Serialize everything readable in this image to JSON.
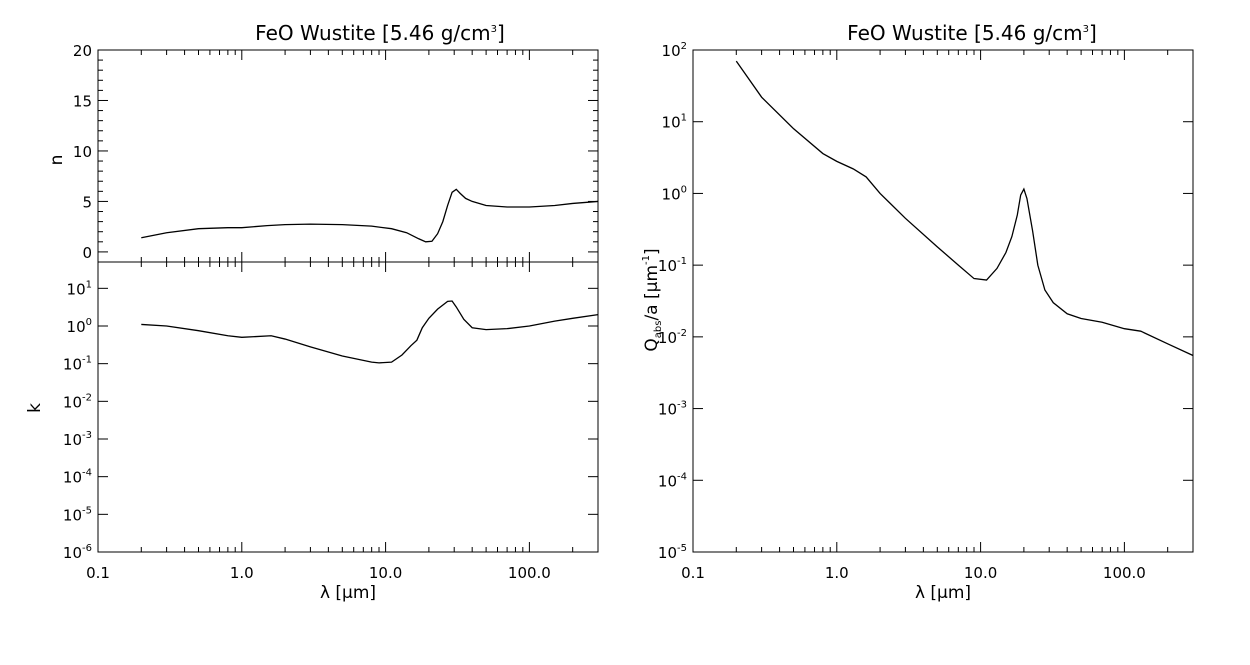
{
  "chart_data": [
    {
      "panel": "left",
      "type": "line",
      "title": "FeO Wustite [5.46 g/cm",
      "title_sup": "3",
      "title_end": "]",
      "xlabel": "λ [μm]",
      "xscale": "log",
      "xlim": [
        0.1,
        300
      ],
      "xticks": [
        {
          "value": 0.1,
          "label": "0.1"
        },
        {
          "value": 1,
          "label": "1.0"
        },
        {
          "value": 10,
          "label": "10.0"
        },
        {
          "value": 100,
          "label": "100.0"
        }
      ],
      "subplots": [
        {
          "name": "n",
          "ylabel": "n",
          "yscale": "linear",
          "ylim": [
            -1,
            20
          ],
          "yticks": [
            {
              "value": 0,
              "label": "0"
            },
            {
              "value": 5,
              "label": "5"
            },
            {
              "value": 10,
              "label": "10"
            },
            {
              "value": 15,
              "label": "15"
            },
            {
              "value": 20,
              "label": "20"
            }
          ],
          "series": [
            {
              "x": [
                0.2,
                0.3,
                0.5,
                0.8,
                1.0,
                1.5,
                2.0,
                3.0,
                5.0,
                8.0,
                11,
                14,
                17,
                19,
                21,
                23,
                25,
                27,
                29,
                31,
                33,
                36,
                40,
                50,
                70,
                100,
                150,
                200,
                300
              ],
              "y": [
                1.4,
                1.9,
                2.3,
                2.4,
                2.4,
                2.6,
                2.7,
                2.75,
                2.7,
                2.55,
                2.3,
                1.9,
                1.3,
                1.0,
                1.05,
                1.8,
                3.0,
                4.6,
                5.9,
                6.2,
                5.8,
                5.3,
                5.0,
                4.6,
                4.45,
                4.45,
                4.6,
                4.8,
                5.0
              ]
            }
          ]
        },
        {
          "name": "k",
          "ylabel": "k",
          "yscale": "log",
          "ylim": [
            1e-06,
            50
          ],
          "yticks": [
            {
              "value": 1e-06,
              "base": "10",
              "exp": "-6"
            },
            {
              "value": 1e-05,
              "base": "10",
              "exp": "-5"
            },
            {
              "value": 0.0001,
              "base": "10",
              "exp": "-4"
            },
            {
              "value": 0.001,
              "base": "10",
              "exp": "-3"
            },
            {
              "value": 0.01,
              "base": "10",
              "exp": "-2"
            },
            {
              "value": 0.1,
              "base": "10",
              "exp": "-1"
            },
            {
              "value": 1,
              "base": "10",
              "exp": "0"
            },
            {
              "value": 10,
              "base": "10",
              "exp": "1"
            }
          ],
          "series": [
            {
              "x": [
                0.2,
                0.3,
                0.5,
                0.8,
                1.0,
                1.6,
                2.0,
                3.0,
                5.0,
                8.0,
                9.0,
                11,
                13,
                15,
                16.5,
                18,
                20,
                23,
                27,
                29,
                31,
                35,
                40,
                50,
                70,
                100,
                150,
                200,
                300
              ],
              "y": [
                1.1,
                1.0,
                0.75,
                0.55,
                0.5,
                0.55,
                0.45,
                0.28,
                0.16,
                0.11,
                0.105,
                0.11,
                0.17,
                0.3,
                0.42,
                0.9,
                1.6,
                2.8,
                4.5,
                4.6,
                3.2,
                1.5,
                0.9,
                0.8,
                0.85,
                1.0,
                1.35,
                1.6,
                2.0
              ]
            }
          ]
        }
      ]
    },
    {
      "panel": "right",
      "type": "line",
      "title": "FeO Wustite [5.46 g/cm",
      "title_sup": "3",
      "title_end": "]",
      "xlabel": "λ [μm]",
      "ylabel_parts": {
        "q": "Q",
        "sub": "abs",
        "mid": "/a [μm",
        "sup": "-1",
        "end": "]"
      },
      "xscale": "log",
      "yscale": "log",
      "xlim": [
        0.1,
        300
      ],
      "ylim": [
        1e-05,
        100
      ],
      "xticks": [
        {
          "value": 0.1,
          "label": "0.1"
        },
        {
          "value": 1,
          "label": "1.0"
        },
        {
          "value": 10,
          "label": "10.0"
        },
        {
          "value": 100,
          "label": "100.0"
        }
      ],
      "yticks": [
        {
          "value": 1e-05,
          "base": "10",
          "exp": "-5"
        },
        {
          "value": 0.0001,
          "base": "10",
          "exp": "-4"
        },
        {
          "value": 0.001,
          "base": "10",
          "exp": "-3"
        },
        {
          "value": 0.01,
          "base": "10",
          "exp": "-2"
        },
        {
          "value": 0.1,
          "base": "10",
          "exp": "-1"
        },
        {
          "value": 1,
          "base": "10",
          "exp": "0"
        },
        {
          "value": 10,
          "base": "10",
          "exp": "1"
        },
        {
          "value": 100,
          "base": "10",
          "exp": "2"
        }
      ],
      "series": [
        {
          "x": [
            0.2,
            0.3,
            0.5,
            0.8,
            1.0,
            1.3,
            1.6,
            2.0,
            3.0,
            5.0,
            7.0,
            9.0,
            11,
            13,
            15,
            16.5,
            18,
            19,
            20,
            21,
            23,
            25,
            28,
            32,
            40,
            50,
            70,
            100,
            130,
            200,
            300
          ],
          "y": [
            70,
            22,
            8,
            3.6,
            2.8,
            2.2,
            1.7,
            1.0,
            0.45,
            0.18,
            0.1,
            0.065,
            0.062,
            0.09,
            0.15,
            0.25,
            0.5,
            0.95,
            1.15,
            0.85,
            0.3,
            0.1,
            0.045,
            0.03,
            0.021,
            0.018,
            0.016,
            0.013,
            0.012,
            0.008,
            0.0055
          ]
        }
      ]
    }
  ]
}
